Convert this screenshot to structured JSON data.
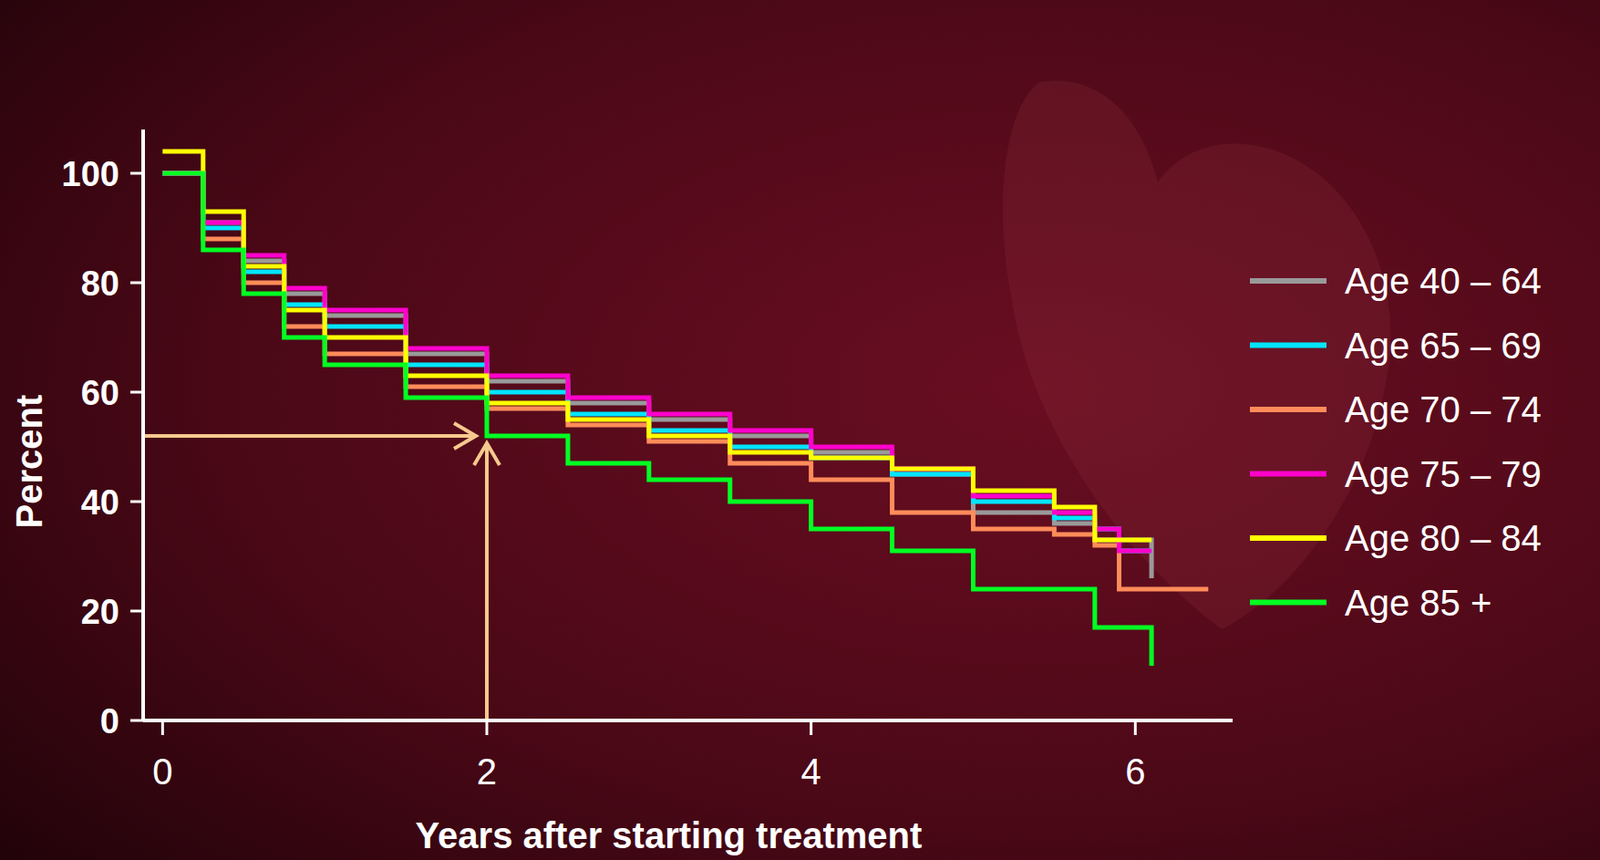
{
  "chart_data": {
    "type": "line",
    "line_style": "step",
    "x_label": "Years after starting treatment",
    "y_label": "Percent",
    "x": [
      0,
      0.25,
      0.5,
      0.75,
      1,
      1.5,
      2,
      2.5,
      3,
      3.5,
      4,
      4.5,
      5,
      5.5,
      5.75,
      5.9,
      6.1,
      6.25,
      6.45
    ],
    "series": [
      {
        "name": "Age 40 – 64",
        "color": "#9a9a9a",
        "values": [
          100,
          91,
          84,
          78,
          74,
          67,
          62,
          58,
          55,
          52,
          49,
          45,
          38,
          36,
          33,
          33,
          26,
          null,
          null
        ]
      },
      {
        "name": "Age 65 – 69",
        "color": "#00e5ff",
        "values": [
          100,
          90,
          82,
          76,
          72,
          65,
          60,
          56,
          53,
          50,
          48,
          45,
          40,
          37,
          35,
          31,
          31,
          null,
          null
        ]
      },
      {
        "name": "Age 70 – 74",
        "color": "#ff8c5a",
        "values": [
          100,
          88,
          80,
          72,
          67,
          61,
          57,
          54,
          51,
          47,
          44,
          38,
          35,
          34,
          32,
          24,
          24,
          24,
          24
        ]
      },
      {
        "name": "Age 75 – 79",
        "color": "#ff00cc",
        "values": [
          100,
          91,
          85,
          79,
          75,
          68,
          63,
          59,
          56,
          53,
          50,
          46,
          41,
          38,
          35,
          31,
          31,
          null,
          null
        ]
      },
      {
        "name": "Age 80 – 84",
        "color": "#ffff00",
        "values": [
          104,
          93,
          83,
          75,
          70,
          63,
          58,
          55,
          52,
          49,
          48,
          46,
          42,
          39,
          33,
          33,
          33,
          null,
          null
        ]
      },
      {
        "name": "Age 85 +",
        "color": "#00ff22",
        "values": [
          100,
          86,
          78,
          70,
          65,
          59,
          52,
          47,
          44,
          40,
          35,
          31,
          24,
          24,
          17,
          17,
          10,
          null,
          null
        ]
      }
    ],
    "annotations": [
      {
        "x": 2,
        "y": 52
      }
    ],
    "xlim": [
      -0.12,
      6.6
    ],
    "ylim": [
      0,
      108
    ],
    "xticks": [
      0,
      2,
      4,
      6
    ],
    "yticks": [
      0,
      20,
      40,
      60,
      80,
      100
    ],
    "grid": false,
    "legend": "right"
  }
}
